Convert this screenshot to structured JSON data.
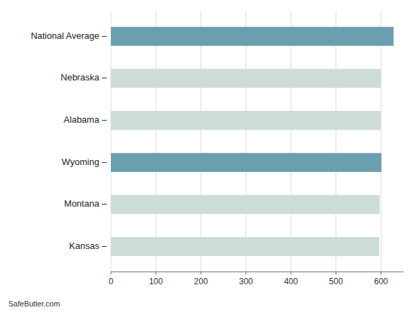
{
  "chart_data": {
    "type": "bar",
    "orientation": "horizontal",
    "categories": [
      "Kansas –",
      "Montana –",
      "Wyoming –",
      "Alabama –",
      "Nebraska –",
      "National Average –"
    ],
    "values": [
      596,
      597,
      601,
      599,
      600,
      628
    ],
    "colors": [
      "#ccddd5",
      "#ccddd5",
      "#6b9faf",
      "#ccddd5",
      "#ccddd5",
      "#6b9faf"
    ],
    "xlim": [
      0,
      650
    ],
    "xticks": [
      0,
      100,
      200,
      300,
      400,
      500,
      600
    ],
    "grid": true,
    "annotations": [
      "SafeButler.com"
    ]
  }
}
